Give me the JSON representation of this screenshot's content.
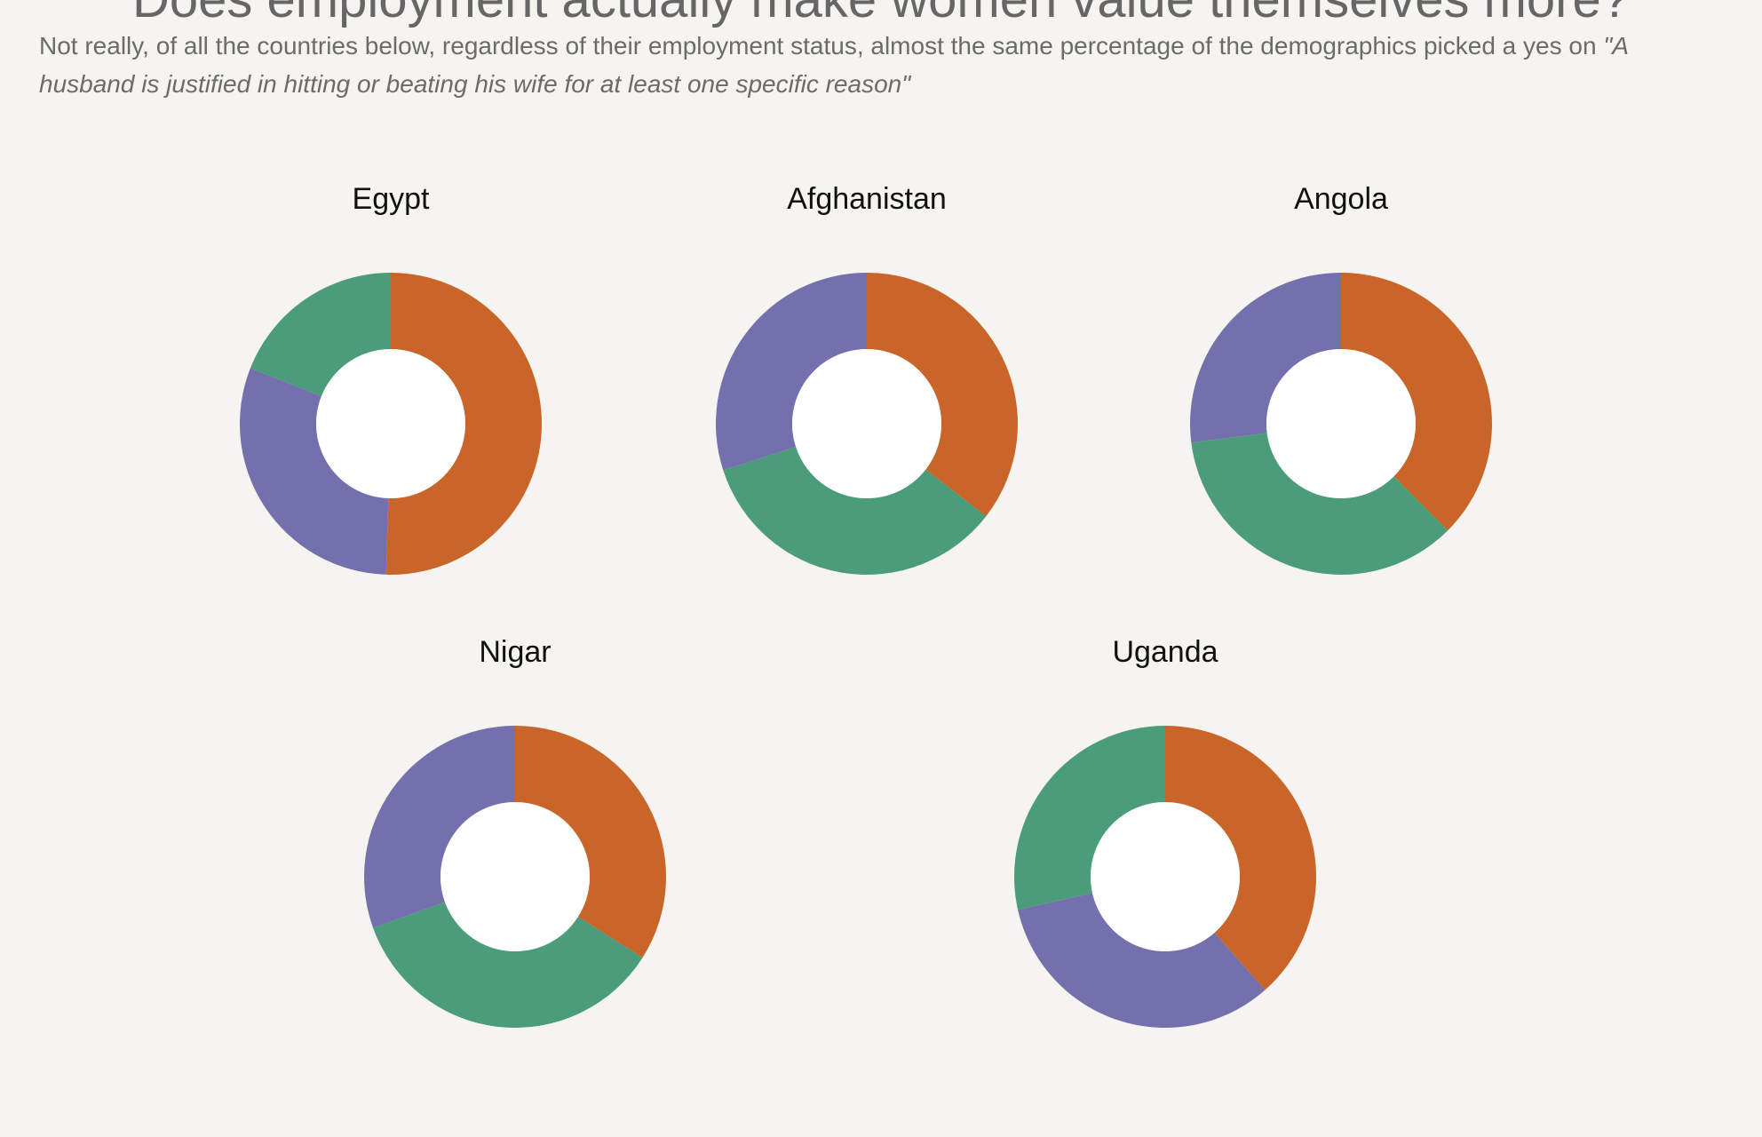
{
  "title": "Does employment actually make women value themselves more?",
  "subtitle": {
    "lead": "Not really, of all the countries below, regardless of their employment status, almost the same percentage of the demographics picked a yes on ",
    "quote": "\"A husband is justified in hitting or beating his wife for at least one specific reason\""
  },
  "colors": {
    "orange": "#c96528",
    "green": "#4a9c7a",
    "purple": "#7470ad",
    "hole": "#ffffff",
    "background": "#f6f4f0"
  },
  "chart_data": {
    "type": "pie",
    "style": "donut",
    "charts": [
      {
        "country": "Egypt",
        "slices": [
          {
            "color": "orange",
            "value": 50.5
          },
          {
            "color": "purple",
            "value": 30.5
          },
          {
            "color": "green",
            "value": 19.0
          }
        ]
      },
      {
        "country": "Afghanistan",
        "slices": [
          {
            "color": "orange",
            "value": 35.5
          },
          {
            "color": "green",
            "value": 34.5
          },
          {
            "color": "purple",
            "value": 30.0
          }
        ]
      },
      {
        "country": "Angola",
        "slices": [
          {
            "color": "orange",
            "value": 37.5
          },
          {
            "color": "green",
            "value": 35.5
          },
          {
            "color": "purple",
            "value": 27.0
          }
        ]
      },
      {
        "country": "Nigar",
        "slices": [
          {
            "color": "orange",
            "value": 34.0
          },
          {
            "color": "green",
            "value": 35.5
          },
          {
            "color": "purple",
            "value": 30.5
          }
        ]
      },
      {
        "country": "Uganda",
        "slices": [
          {
            "color": "orange",
            "value": 38.5
          },
          {
            "color": "purple",
            "value": 33.0
          },
          {
            "color": "green",
            "value": 28.5
          }
        ]
      }
    ]
  }
}
